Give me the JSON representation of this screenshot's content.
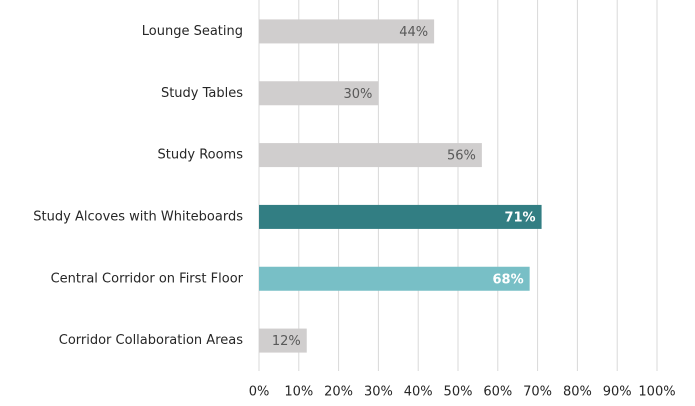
{
  "chart_data": {
    "type": "barh",
    "categories": [
      "Lounge Seating",
      "Study Tables",
      "Study Rooms",
      "Study Alcoves with Whiteboards",
      "Central Corridor on First Floor",
      "Corridor Collaboration Areas"
    ],
    "values": [
      44,
      30,
      56,
      71,
      68,
      12
    ],
    "value_labels": [
      "44%",
      "30%",
      "56%",
      "71%",
      "68%",
      "12%"
    ],
    "colors": [
      "#d0cece",
      "#d0cece",
      "#d0cece",
      "#327e83",
      "#78bfc6",
      "#d0cece"
    ],
    "label_colors": [
      "#595959",
      "#595959",
      "#595959",
      "#ffffff",
      "#ffffff",
      "#595959"
    ],
    "xlim": [
      0,
      100
    ],
    "xticks": [
      {
        "value": 0,
        "label": "0%"
      },
      {
        "value": 10,
        "label": "10%"
      },
      {
        "value": 20,
        "label": "20%"
      },
      {
        "value": 30,
        "label": "30%"
      },
      {
        "value": 40,
        "label": "40%"
      },
      {
        "value": 50,
        "label": "50%"
      },
      {
        "value": 60,
        "label": "60%"
      },
      {
        "value": 70,
        "label": "70%"
      },
      {
        "value": 80,
        "label": "80%"
      },
      {
        "value": 90,
        "label": "90%"
      },
      {
        "value": 100,
        "label": "100%"
      }
    ],
    "grid": true
  }
}
